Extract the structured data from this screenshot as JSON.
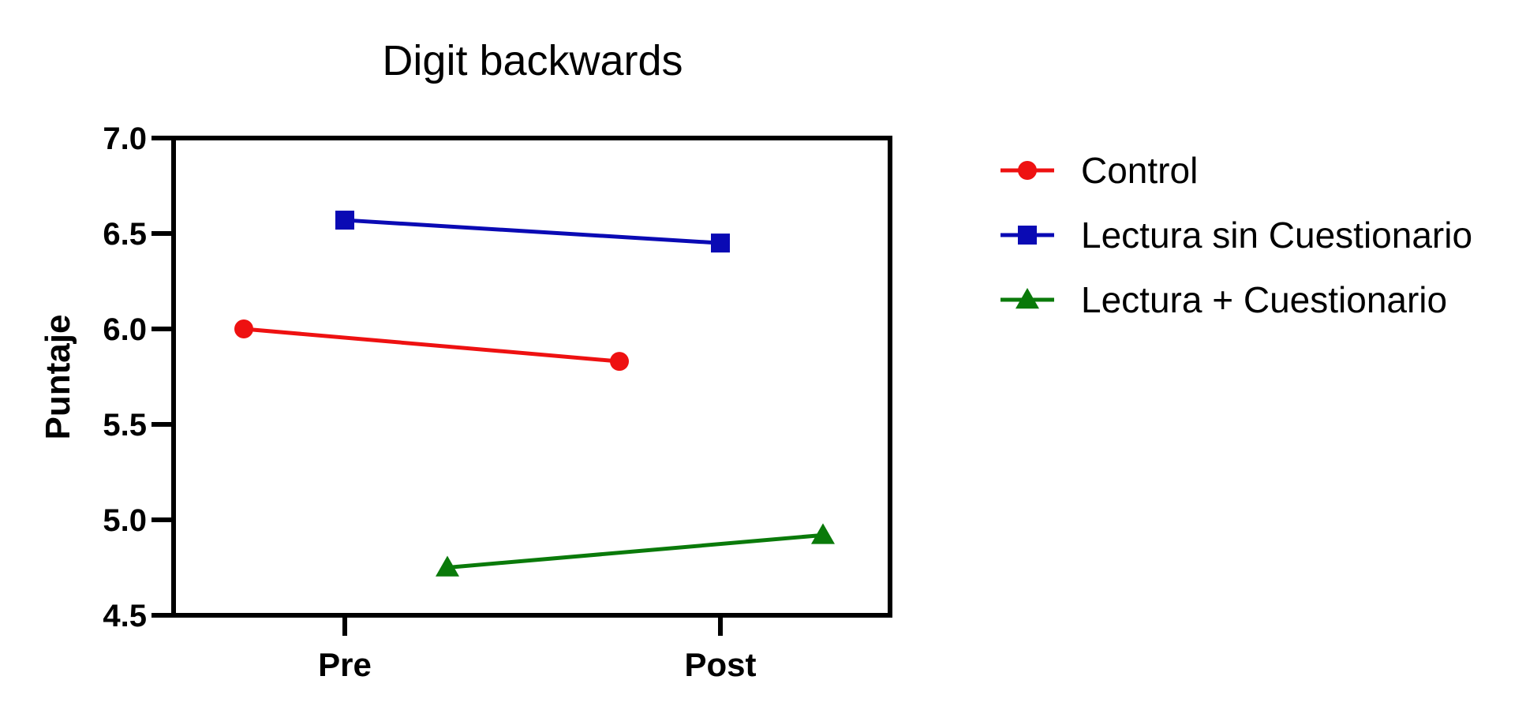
{
  "chart_data": {
    "type": "line",
    "title": "Digit backwards",
    "xlabel": "",
    "ylabel": "Puntaje",
    "categories": [
      "Pre",
      "Post"
    ],
    "ylim": [
      4.5,
      7.0
    ],
    "yticks": [
      "4.5",
      "5.0",
      "5.5",
      "6.0",
      "6.5",
      "7.0"
    ],
    "legend_position": "right",
    "grid": false,
    "series": [
      {
        "name": "Control",
        "values": [
          6.0,
          5.83
        ],
        "color": "#ee1111",
        "marker": "circle"
      },
      {
        "name": "Lectura sin Cuestionario",
        "values": [
          6.57,
          6.45
        ],
        "color": "#0a0ab4",
        "marker": "square"
      },
      {
        "name": "Lectura + Cuestionario",
        "values": [
          4.75,
          4.92
        ],
        "color": "#0a7a0a",
        "marker": "triangle"
      }
    ]
  }
}
